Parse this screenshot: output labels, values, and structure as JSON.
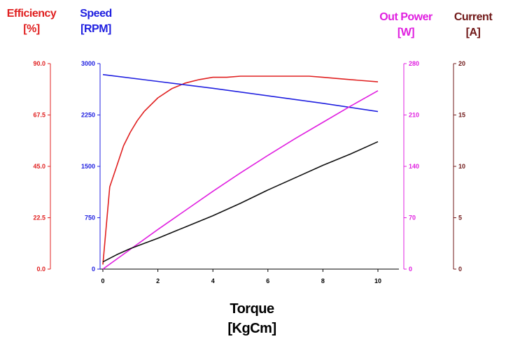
{
  "chart_data": {
    "type": "line",
    "x_axis": {
      "title": "Torque",
      "unit": "[KgCm]",
      "min": 0,
      "max": 10,
      "ticks": [
        0,
        2,
        4,
        6,
        8,
        10
      ],
      "tick_labels": [
        "0",
        "2",
        "4",
        "6",
        "8",
        "10"
      ]
    },
    "y_axes": [
      {
        "id": "efficiency",
        "title": "Efficiency",
        "unit": "[%]",
        "color": "#e02020",
        "min": 0,
        "max": 90,
        "ticks": [
          0,
          22.5,
          45,
          67.5,
          90
        ],
        "tick_labels": [
          "0.0",
          "22.5",
          "45.0",
          "67.5",
          "90.0"
        ]
      },
      {
        "id": "speed",
        "title": "Speed",
        "unit": "[RPM]",
        "color": "#2020e0",
        "min": 0,
        "max": 3000,
        "ticks": [
          0,
          750,
          1500,
          2250,
          3000
        ],
        "tick_labels": [
          "0",
          "750",
          "1500",
          "2250",
          "3000"
        ]
      },
      {
        "id": "power",
        "title": "Out Power",
        "unit": "[W]",
        "color": "#e020e0",
        "min": 0,
        "max": 280,
        "ticks": [
          0,
          70,
          140,
          210,
          280
        ],
        "tick_labels": [
          "0",
          "70",
          "140",
          "210",
          "280"
        ]
      },
      {
        "id": "current",
        "title": "Current",
        "unit": "[A]",
        "color": "#701818",
        "min": 0,
        "max": 20,
        "ticks": [
          0,
          5,
          10,
          15,
          20
        ],
        "tick_labels": [
          "0",
          "5",
          "10",
          "15",
          "20"
        ]
      }
    ],
    "series": [
      {
        "axis": "efficiency",
        "color": "#e02020",
        "x": [
          0,
          0.25,
          0.5,
          0.75,
          1,
          1.25,
          1.5,
          2,
          2.5,
          3,
          3.5,
          4,
          4.5,
          5,
          6,
          7,
          7.5,
          8,
          9,
          9.5,
          10
        ],
        "y": [
          2,
          36,
          45,
          54,
          60,
          65,
          69,
          75,
          79,
          81.5,
          83,
          84,
          84,
          84.5,
          84.5,
          84.5,
          84.5,
          84,
          83,
          82.5,
          82
        ]
      },
      {
        "axis": "speed",
        "color": "#2020e0",
        "x": [
          0,
          2,
          4,
          6,
          8,
          10
        ],
        "y": [
          2840,
          2740,
          2640,
          2530,
          2420,
          2300
        ]
      },
      {
        "axis": "power",
        "color": "#e020e0",
        "x": [
          0,
          1,
          2,
          3,
          4,
          5,
          6,
          7,
          8,
          9,
          10
        ],
        "y": [
          0,
          27,
          54,
          80,
          106,
          131,
          155,
          178,
          200,
          222,
          243
        ]
      },
      {
        "axis": "current",
        "color": "#101010",
        "x": [
          0,
          0.5,
          1,
          2,
          3,
          4,
          5,
          6,
          7,
          8,
          9,
          10
        ],
        "y": [
          0.7,
          1.4,
          2,
          3,
          4.1,
          5.2,
          6.4,
          7.7,
          8.9,
          10.1,
          11.2,
          12.4
        ]
      }
    ]
  }
}
